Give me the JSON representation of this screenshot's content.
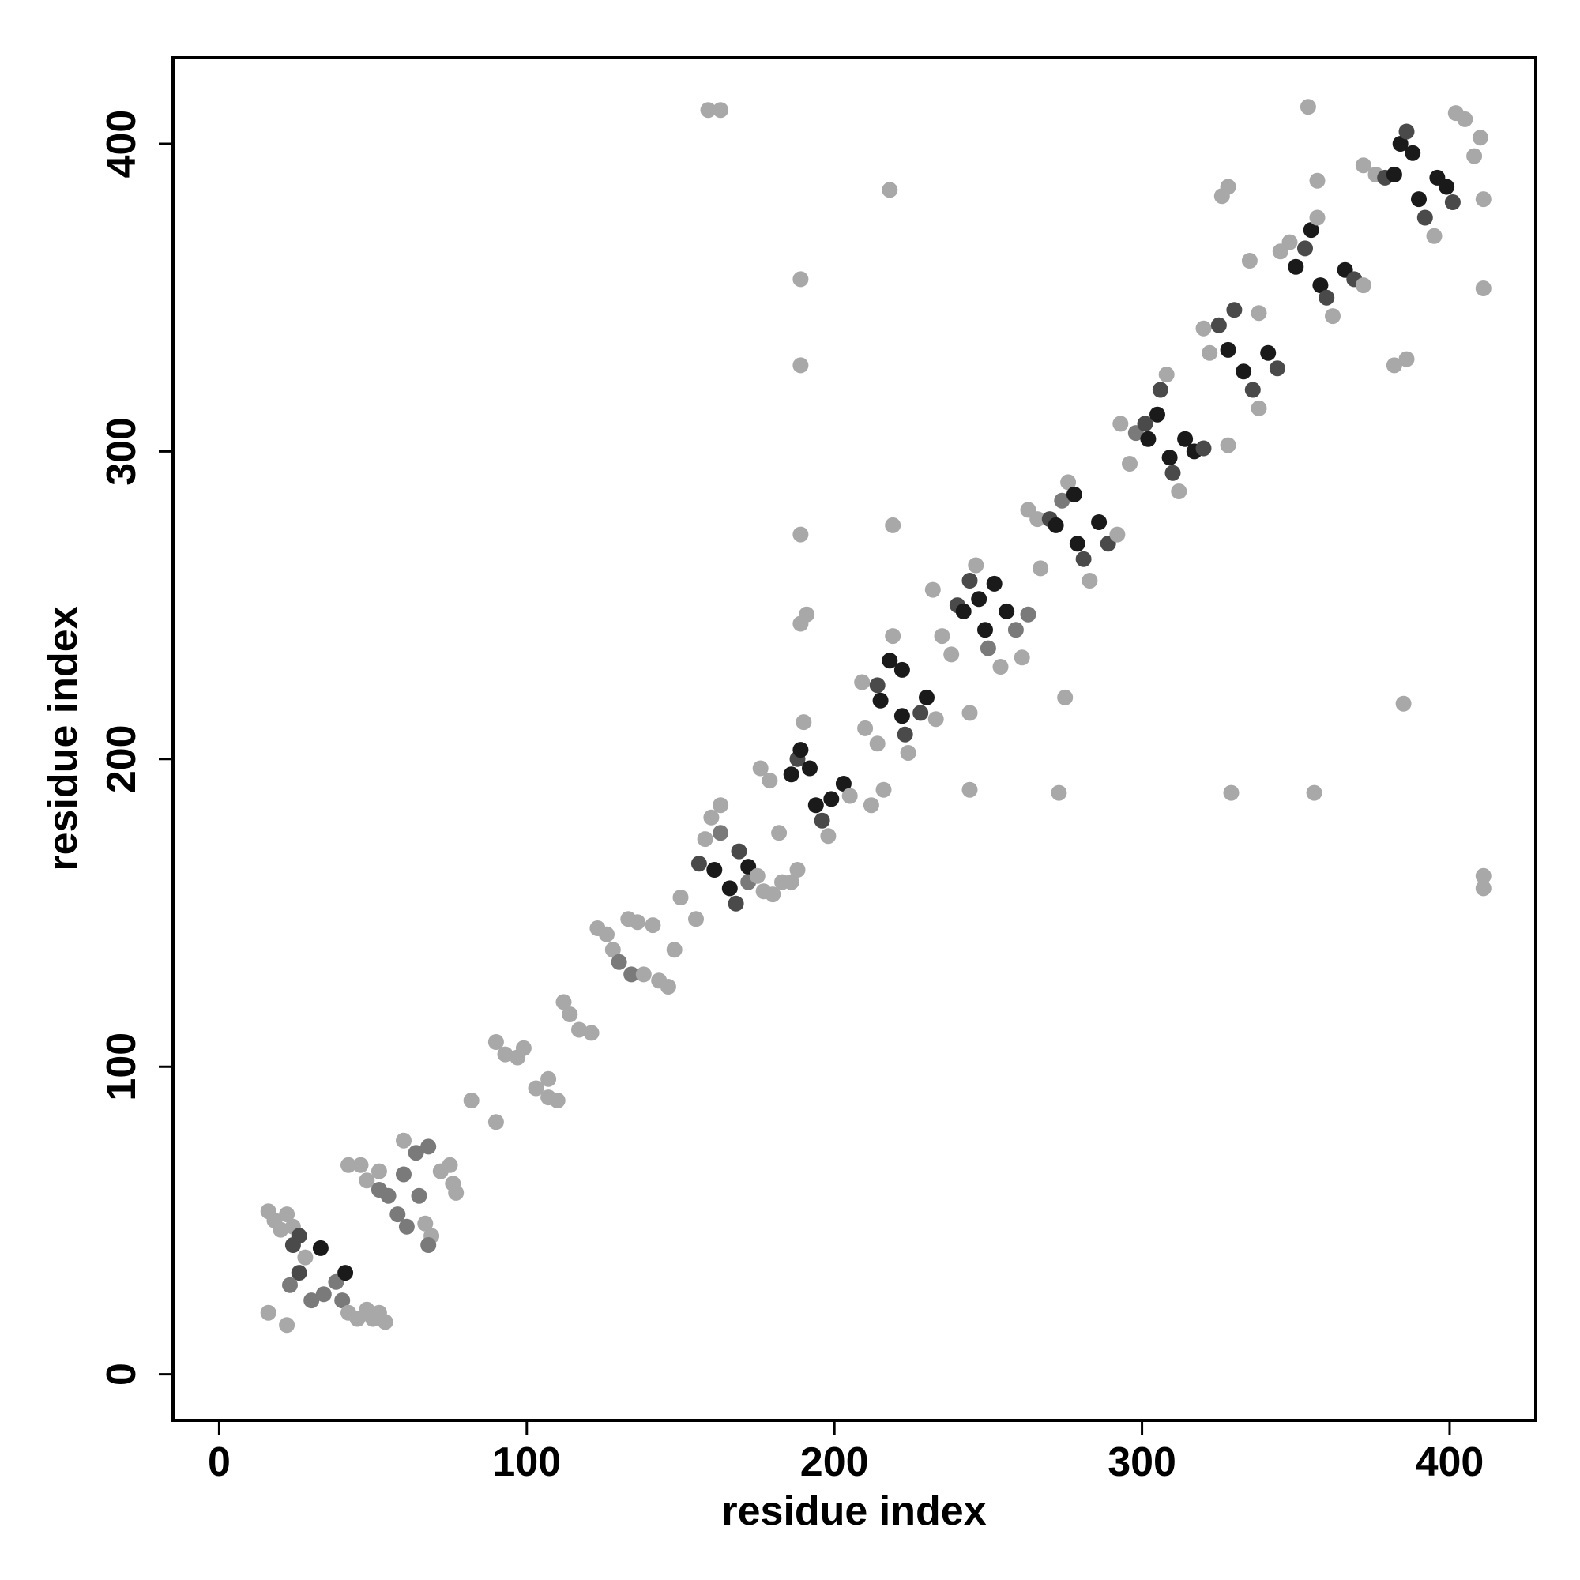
{
  "chart_data": {
    "type": "scatter",
    "xlabel": "residue index",
    "ylabel": "residue index",
    "xlim": [
      -15,
      428
    ],
    "ylim": [
      -15,
      428
    ],
    "x_ticks": [
      0,
      100,
      200,
      300,
      400
    ],
    "y_ticks": [
      0,
      100,
      200,
      300,
      400
    ],
    "grid": false,
    "colors": {
      "light": "#a8a8a8",
      "medium": "#7a7a7a",
      "dark": "#4a4a4a",
      "darkest": "#1a1a1a"
    },
    "points": [
      {
        "x": 16,
        "y": 20,
        "shade": "light"
      },
      {
        "x": 22,
        "y": 16,
        "shade": "light"
      },
      {
        "x": 16,
        "y": 53,
        "shade": "light"
      },
      {
        "x": 18,
        "y": 50,
        "shade": "light"
      },
      {
        "x": 20,
        "y": 47,
        "shade": "light"
      },
      {
        "x": 22,
        "y": 52,
        "shade": "light"
      },
      {
        "x": 24,
        "y": 48,
        "shade": "light"
      },
      {
        "x": 26,
        "y": 45,
        "shade": "dark"
      },
      {
        "x": 24,
        "y": 42,
        "shade": "dark"
      },
      {
        "x": 28,
        "y": 38,
        "shade": "light"
      },
      {
        "x": 33,
        "y": 41,
        "shade": "darkest"
      },
      {
        "x": 26,
        "y": 33,
        "shade": "dark"
      },
      {
        "x": 23,
        "y": 29,
        "shade": "medium"
      },
      {
        "x": 30,
        "y": 24,
        "shade": "medium"
      },
      {
        "x": 34,
        "y": 26,
        "shade": "medium"
      },
      {
        "x": 38,
        "y": 30,
        "shade": "medium"
      },
      {
        "x": 41,
        "y": 33,
        "shade": "darkest"
      },
      {
        "x": 40,
        "y": 24,
        "shade": "medium"
      },
      {
        "x": 42,
        "y": 20,
        "shade": "light"
      },
      {
        "x": 45,
        "y": 18,
        "shade": "light"
      },
      {
        "x": 48,
        "y": 21,
        "shade": "light"
      },
      {
        "x": 50,
        "y": 18,
        "shade": "light"
      },
      {
        "x": 52,
        "y": 20,
        "shade": "light"
      },
      {
        "x": 54,
        "y": 17,
        "shade": "light"
      },
      {
        "x": 42,
        "y": 68,
        "shade": "light"
      },
      {
        "x": 46,
        "y": 68,
        "shade": "light"
      },
      {
        "x": 48,
        "y": 63,
        "shade": "light"
      },
      {
        "x": 52,
        "y": 66,
        "shade": "light"
      },
      {
        "x": 52,
        "y": 60,
        "shade": "medium"
      },
      {
        "x": 55,
        "y": 58,
        "shade": "medium"
      },
      {
        "x": 58,
        "y": 52,
        "shade": "medium"
      },
      {
        "x": 60,
        "y": 65,
        "shade": "medium"
      },
      {
        "x": 61,
        "y": 48,
        "shade": "medium"
      },
      {
        "x": 65,
        "y": 58,
        "shade": "medium"
      },
      {
        "x": 60,
        "y": 76,
        "shade": "light"
      },
      {
        "x": 64,
        "y": 72,
        "shade": "medium"
      },
      {
        "x": 68,
        "y": 74,
        "shade": "medium"
      },
      {
        "x": 67,
        "y": 49,
        "shade": "light"
      },
      {
        "x": 69,
        "y": 45,
        "shade": "light"
      },
      {
        "x": 68,
        "y": 42,
        "shade": "medium"
      },
      {
        "x": 72,
        "y": 66,
        "shade": "light"
      },
      {
        "x": 75,
        "y": 68,
        "shade": "light"
      },
      {
        "x": 76,
        "y": 62,
        "shade": "light"
      },
      {
        "x": 77,
        "y": 59,
        "shade": "light"
      },
      {
        "x": 82,
        "y": 89,
        "shade": "light"
      },
      {
        "x": 90,
        "y": 82,
        "shade": "light"
      },
      {
        "x": 90,
        "y": 108,
        "shade": "light"
      },
      {
        "x": 93,
        "y": 104,
        "shade": "light"
      },
      {
        "x": 97,
        "y": 103,
        "shade": "light"
      },
      {
        "x": 99,
        "y": 106,
        "shade": "light"
      },
      {
        "x": 103,
        "y": 93,
        "shade": "light"
      },
      {
        "x": 107,
        "y": 96,
        "shade": "light"
      },
      {
        "x": 107,
        "y": 90,
        "shade": "light"
      },
      {
        "x": 110,
        "y": 89,
        "shade": "light"
      },
      {
        "x": 112,
        "y": 121,
        "shade": "light"
      },
      {
        "x": 114,
        "y": 117,
        "shade": "light"
      },
      {
        "x": 117,
        "y": 112,
        "shade": "light"
      },
      {
        "x": 121,
        "y": 111,
        "shade": "light"
      },
      {
        "x": 123,
        "y": 145,
        "shade": "light"
      },
      {
        "x": 126,
        "y": 143,
        "shade": "light"
      },
      {
        "x": 128,
        "y": 138,
        "shade": "light"
      },
      {
        "x": 130,
        "y": 134,
        "shade": "medium"
      },
      {
        "x": 133,
        "y": 148,
        "shade": "light"
      },
      {
        "x": 136,
        "y": 147,
        "shade": "light"
      },
      {
        "x": 134,
        "y": 130,
        "shade": "medium"
      },
      {
        "x": 138,
        "y": 130,
        "shade": "light"
      },
      {
        "x": 141,
        "y": 146,
        "shade": "light"
      },
      {
        "x": 143,
        "y": 128,
        "shade": "light"
      },
      {
        "x": 146,
        "y": 126,
        "shade": "light"
      },
      {
        "x": 148,
        "y": 138,
        "shade": "light"
      },
      {
        "x": 150,
        "y": 155,
        "shade": "light"
      },
      {
        "x": 155,
        "y": 148,
        "shade": "light"
      },
      {
        "x": 156,
        "y": 166,
        "shade": "dark"
      },
      {
        "x": 158,
        "y": 174,
        "shade": "light"
      },
      {
        "x": 160,
        "y": 181,
        "shade": "light"
      },
      {
        "x": 163,
        "y": 185,
        "shade": "light"
      },
      {
        "x": 163,
        "y": 176,
        "shade": "medium"
      },
      {
        "x": 161,
        "y": 164,
        "shade": "darkest"
      },
      {
        "x": 166,
        "y": 158,
        "shade": "darkest"
      },
      {
        "x": 168,
        "y": 153,
        "shade": "dark"
      },
      {
        "x": 169,
        "y": 170,
        "shade": "dark"
      },
      {
        "x": 172,
        "y": 165,
        "shade": "darkest"
      },
      {
        "x": 172,
        "y": 160,
        "shade": "medium"
      },
      {
        "x": 175,
        "y": 162,
        "shade": "light"
      },
      {
        "x": 177,
        "y": 157,
        "shade": "light"
      },
      {
        "x": 180,
        "y": 156,
        "shade": "light"
      },
      {
        "x": 183,
        "y": 160,
        "shade": "light"
      },
      {
        "x": 176,
        "y": 197,
        "shade": "light"
      },
      {
        "x": 179,
        "y": 193,
        "shade": "light"
      },
      {
        "x": 182,
        "y": 176,
        "shade": "light"
      },
      {
        "x": 186,
        "y": 195,
        "shade": "darkest"
      },
      {
        "x": 188,
        "y": 200,
        "shade": "dark"
      },
      {
        "x": 190,
        "y": 212,
        "shade": "light"
      },
      {
        "x": 189,
        "y": 203,
        "shade": "darkest"
      },
      {
        "x": 192,
        "y": 197,
        "shade": "darkest"
      },
      {
        "x": 194,
        "y": 185,
        "shade": "darkest"
      },
      {
        "x": 196,
        "y": 180,
        "shade": "dark"
      },
      {
        "x": 198,
        "y": 175,
        "shade": "light"
      },
      {
        "x": 199,
        "y": 187,
        "shade": "darkest"
      },
      {
        "x": 203,
        "y": 192,
        "shade": "darkest"
      },
      {
        "x": 205,
        "y": 188,
        "shade": "light"
      },
      {
        "x": 210,
        "y": 210,
        "shade": "light"
      },
      {
        "x": 212,
        "y": 185,
        "shade": "light"
      },
      {
        "x": 216,
        "y": 190,
        "shade": "light"
      },
      {
        "x": 209,
        "y": 225,
        "shade": "light"
      },
      {
        "x": 214,
        "y": 224,
        "shade": "dark"
      },
      {
        "x": 215,
        "y": 219,
        "shade": "darkest"
      },
      {
        "x": 218,
        "y": 232,
        "shade": "darkest"
      },
      {
        "x": 219,
        "y": 240,
        "shade": "light"
      },
      {
        "x": 222,
        "y": 229,
        "shade": "darkest"
      },
      {
        "x": 222,
        "y": 214,
        "shade": "darkest"
      },
      {
        "x": 223,
        "y": 208,
        "shade": "dark"
      },
      {
        "x": 224,
        "y": 202,
        "shade": "light"
      },
      {
        "x": 214,
        "y": 205,
        "shade": "light"
      },
      {
        "x": 228,
        "y": 215,
        "shade": "dark"
      },
      {
        "x": 230,
        "y": 220,
        "shade": "darkest"
      },
      {
        "x": 233,
        "y": 213,
        "shade": "light"
      },
      {
        "x": 232,
        "y": 255,
        "shade": "light"
      },
      {
        "x": 235,
        "y": 240,
        "shade": "light"
      },
      {
        "x": 238,
        "y": 234,
        "shade": "light"
      },
      {
        "x": 240,
        "y": 250,
        "shade": "dark"
      },
      {
        "x": 242,
        "y": 248,
        "shade": "darkest"
      },
      {
        "x": 244,
        "y": 258,
        "shade": "dark"
      },
      {
        "x": 246,
        "y": 263,
        "shade": "light"
      },
      {
        "x": 247,
        "y": 252,
        "shade": "darkest"
      },
      {
        "x": 249,
        "y": 242,
        "shade": "darkest"
      },
      {
        "x": 250,
        "y": 236,
        "shade": "medium"
      },
      {
        "x": 252,
        "y": 257,
        "shade": "darkest"
      },
      {
        "x": 254,
        "y": 230,
        "shade": "light"
      },
      {
        "x": 244,
        "y": 215,
        "shade": "light"
      },
      {
        "x": 256,
        "y": 248,
        "shade": "darkest"
      },
      {
        "x": 259,
        "y": 242,
        "shade": "medium"
      },
      {
        "x": 261,
        "y": 233,
        "shade": "light"
      },
      {
        "x": 263,
        "y": 247,
        "shade": "medium"
      },
      {
        "x": 263,
        "y": 281,
        "shade": "light"
      },
      {
        "x": 266,
        "y": 278,
        "shade": "light"
      },
      {
        "x": 267,
        "y": 262,
        "shade": "light"
      },
      {
        "x": 270,
        "y": 278,
        "shade": "dark"
      },
      {
        "x": 272,
        "y": 276,
        "shade": "darkest"
      },
      {
        "x": 274,
        "y": 284,
        "shade": "medium"
      },
      {
        "x": 276,
        "y": 290,
        "shade": "light"
      },
      {
        "x": 278,
        "y": 286,
        "shade": "darkest"
      },
      {
        "x": 279,
        "y": 270,
        "shade": "darkest"
      },
      {
        "x": 281,
        "y": 265,
        "shade": "dark"
      },
      {
        "x": 283,
        "y": 258,
        "shade": "light"
      },
      {
        "x": 286,
        "y": 277,
        "shade": "darkest"
      },
      {
        "x": 289,
        "y": 270,
        "shade": "dark"
      },
      {
        "x": 292,
        "y": 273,
        "shade": "light"
      },
      {
        "x": 293,
        "y": 309,
        "shade": "light"
      },
      {
        "x": 296,
        "y": 296,
        "shade": "light"
      },
      {
        "x": 298,
        "y": 306,
        "shade": "medium"
      },
      {
        "x": 301,
        "y": 309,
        "shade": "dark"
      },
      {
        "x": 302,
        "y": 304,
        "shade": "darkest"
      },
      {
        "x": 305,
        "y": 312,
        "shade": "darkest"
      },
      {
        "x": 306,
        "y": 320,
        "shade": "dark"
      },
      {
        "x": 308,
        "y": 325,
        "shade": "light"
      },
      {
        "x": 309,
        "y": 298,
        "shade": "darkest"
      },
      {
        "x": 310,
        "y": 293,
        "shade": "dark"
      },
      {
        "x": 312,
        "y": 287,
        "shade": "light"
      },
      {
        "x": 314,
        "y": 304,
        "shade": "darkest"
      },
      {
        "x": 317,
        "y": 300,
        "shade": "darkest"
      },
      {
        "x": 320,
        "y": 301,
        "shade": "dark"
      },
      {
        "x": 320,
        "y": 340,
        "shade": "light"
      },
      {
        "x": 322,
        "y": 332,
        "shade": "light"
      },
      {
        "x": 325,
        "y": 341,
        "shade": "dark"
      },
      {
        "x": 328,
        "y": 333,
        "shade": "darkest"
      },
      {
        "x": 330,
        "y": 346,
        "shade": "dark"
      },
      {
        "x": 333,
        "y": 326,
        "shade": "darkest"
      },
      {
        "x": 336,
        "y": 320,
        "shade": "dark"
      },
      {
        "x": 338,
        "y": 314,
        "shade": "light"
      },
      {
        "x": 338,
        "y": 345,
        "shade": "light"
      },
      {
        "x": 341,
        "y": 332,
        "shade": "darkest"
      },
      {
        "x": 344,
        "y": 327,
        "shade": "dark"
      },
      {
        "x": 345,
        "y": 365,
        "shade": "light"
      },
      {
        "x": 348,
        "y": 368,
        "shade": "light"
      },
      {
        "x": 350,
        "y": 360,
        "shade": "darkest"
      },
      {
        "x": 353,
        "y": 366,
        "shade": "dark"
      },
      {
        "x": 355,
        "y": 372,
        "shade": "darkest"
      },
      {
        "x": 357,
        "y": 376,
        "shade": "light"
      },
      {
        "x": 358,
        "y": 354,
        "shade": "darkest"
      },
      {
        "x": 360,
        "y": 350,
        "shade": "dark"
      },
      {
        "x": 362,
        "y": 344,
        "shade": "light"
      },
      {
        "x": 366,
        "y": 359,
        "shade": "darkest"
      },
      {
        "x": 369,
        "y": 356,
        "shade": "dark"
      },
      {
        "x": 372,
        "y": 354,
        "shade": "light"
      },
      {
        "x": 372,
        "y": 393,
        "shade": "light"
      },
      {
        "x": 376,
        "y": 390,
        "shade": "light"
      },
      {
        "x": 379,
        "y": 389,
        "shade": "dark"
      },
      {
        "x": 382,
        "y": 390,
        "shade": "darkest"
      },
      {
        "x": 384,
        "y": 400,
        "shade": "darkest"
      },
      {
        "x": 386,
        "y": 404,
        "shade": "dark"
      },
      {
        "x": 388,
        "y": 397,
        "shade": "darkest"
      },
      {
        "x": 390,
        "y": 382,
        "shade": "darkest"
      },
      {
        "x": 392,
        "y": 376,
        "shade": "dark"
      },
      {
        "x": 395,
        "y": 370,
        "shade": "light"
      },
      {
        "x": 396,
        "y": 389,
        "shade": "darkest"
      },
      {
        "x": 399,
        "y": 386,
        "shade": "darkest"
      },
      {
        "x": 401,
        "y": 381,
        "shade": "dark"
      },
      {
        "x": 402,
        "y": 410,
        "shade": "light"
      },
      {
        "x": 405,
        "y": 408,
        "shade": "light"
      },
      {
        "x": 408,
        "y": 396,
        "shade": "light"
      },
      {
        "x": 410,
        "y": 402,
        "shade": "light"
      },
      {
        "x": 411,
        "y": 382,
        "shade": "light"
      },
      {
        "x": 326,
        "y": 383,
        "shade": "light"
      },
      {
        "x": 328,
        "y": 386,
        "shade": "light"
      },
      {
        "x": 357,
        "y": 388,
        "shade": "light"
      },
      {
        "x": 335,
        "y": 362,
        "shade": "light"
      },
      {
        "x": 382,
        "y": 328,
        "shade": "light"
      },
      {
        "x": 386,
        "y": 330,
        "shade": "light"
      },
      {
        "x": 411,
        "y": 353,
        "shade": "light"
      },
      {
        "x": 354,
        "y": 412,
        "shade": "light"
      },
      {
        "x": 159,
        "y": 411,
        "shade": "light"
      },
      {
        "x": 163,
        "y": 411,
        "shade": "light"
      },
      {
        "x": 218,
        "y": 385,
        "shade": "light"
      },
      {
        "x": 189,
        "y": 356,
        "shade": "light"
      },
      {
        "x": 189,
        "y": 328,
        "shade": "light"
      },
      {
        "x": 189,
        "y": 273,
        "shade": "light"
      },
      {
        "x": 219,
        "y": 276,
        "shade": "light"
      },
      {
        "x": 189,
        "y": 244,
        "shade": "light"
      },
      {
        "x": 191,
        "y": 247,
        "shade": "light"
      },
      {
        "x": 275,
        "y": 220,
        "shade": "light"
      },
      {
        "x": 385,
        "y": 218,
        "shade": "light"
      },
      {
        "x": 244,
        "y": 190,
        "shade": "light"
      },
      {
        "x": 273,
        "y": 189,
        "shade": "light"
      },
      {
        "x": 329,
        "y": 189,
        "shade": "light"
      },
      {
        "x": 356,
        "y": 189,
        "shade": "light"
      },
      {
        "x": 328,
        "y": 302,
        "shade": "light"
      },
      {
        "x": 411,
        "y": 158,
        "shade": "light"
      },
      {
        "x": 411,
        "y": 162,
        "shade": "light"
      },
      {
        "x": 186,
        "y": 160,
        "shade": "light"
      },
      {
        "x": 188,
        "y": 164,
        "shade": "light"
      }
    ]
  }
}
